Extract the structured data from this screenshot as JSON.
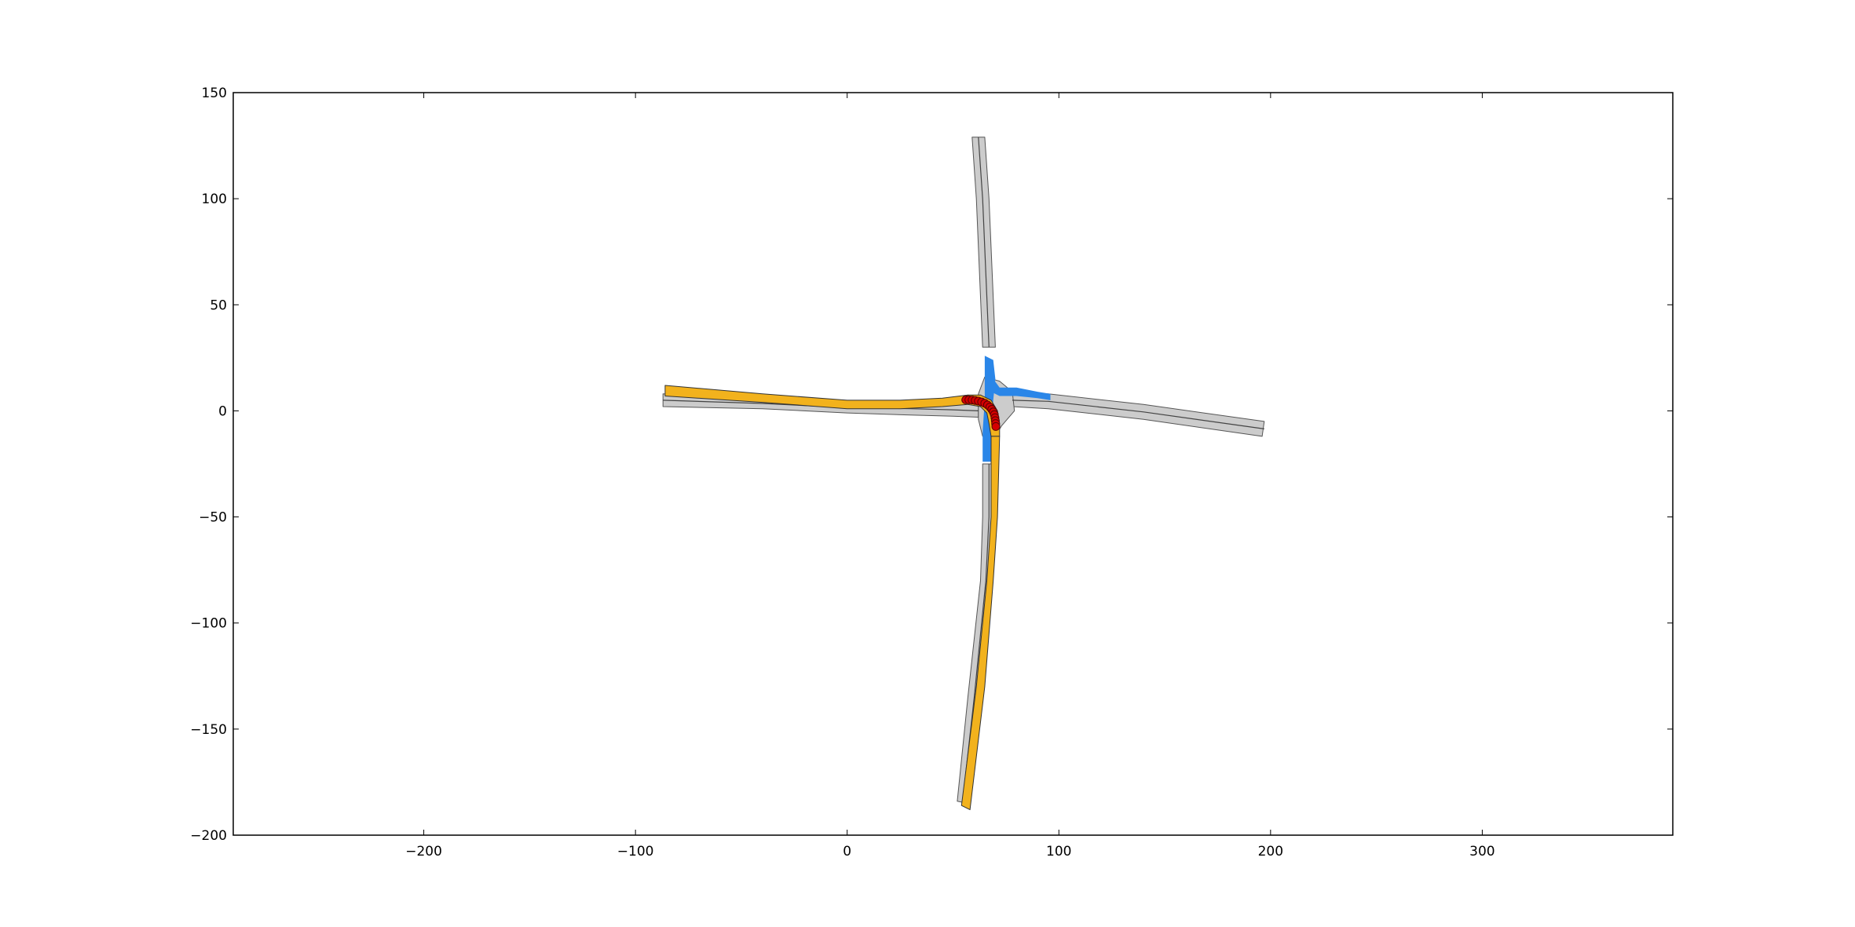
{
  "chart_data": {
    "type": "scatter",
    "title": "",
    "xlabel": "",
    "ylabel": "",
    "xlim": [
      -290,
      390
    ],
    "ylim": [
      -200,
      150
    ],
    "grid": false,
    "x_ticks": [
      -200,
      -100,
      0,
      100,
      200,
      300
    ],
    "x_tick_labels": [
      "−200",
      "−100",
      "0",
      "100",
      "200",
      "300"
    ],
    "y_ticks": [
      150,
      100,
      50,
      0,
      -50,
      -100,
      -150,
      -200
    ],
    "y_tick_labels": [
      "150",
      "100",
      "50",
      "0",
      "−50",
      "−100",
      "−150",
      "−200"
    ],
    "colors": {
      "road_fill": "#cccccc",
      "road_edge": "#555555",
      "lane_line": "#444444",
      "route_fill": "#f2b21d",
      "intersection_fill": "#2a86e8",
      "trajectory_fill": "#d40000",
      "trajectory_edge": "#5a0000"
    },
    "road_polygons": [
      {
        "name": "west-arm-lower",
        "points": [
          [
            -87,
            2
          ],
          [
            -40,
            1
          ],
          [
            0,
            -1
          ],
          [
            30,
            -2
          ],
          [
            50,
            -2.5
          ],
          [
            62,
            -3
          ],
          [
            62,
            3
          ],
          [
            50,
            3.5
          ],
          [
            30,
            4
          ],
          [
            0,
            4
          ],
          [
            -40,
            6
          ],
          [
            -87,
            8
          ]
        ]
      },
      {
        "name": "east-arm",
        "points": [
          [
            78,
            8
          ],
          [
            95,
            8
          ],
          [
            140,
            3
          ],
          [
            197,
            -5
          ],
          [
            196,
            -12
          ],
          [
            140,
            -4
          ],
          [
            95,
            1
          ],
          [
            78,
            2
          ]
        ]
      },
      {
        "name": "north-arm",
        "points": [
          [
            59,
            129
          ],
          [
            65,
            129
          ],
          [
            67,
            100
          ],
          [
            70,
            30
          ],
          [
            64,
            30
          ],
          [
            61,
            100
          ]
        ]
      },
      {
        "name": "south-arm",
        "points": [
          [
            64,
            -25
          ],
          [
            70,
            -25
          ],
          [
            70,
            -50
          ],
          [
            68,
            -80
          ],
          [
            63,
            -135
          ],
          [
            57,
            -185
          ],
          [
            52,
            -184
          ],
          [
            57,
            -135
          ],
          [
            63,
            -80
          ],
          [
            64,
            -50
          ]
        ]
      },
      {
        "name": "intersection-core",
        "points": [
          [
            62,
            8
          ],
          [
            65,
            16
          ],
          [
            72,
            14
          ],
          [
            78,
            9
          ],
          [
            79,
            0
          ],
          [
            73,
            -7
          ],
          [
            70,
            -12
          ],
          [
            64,
            -12
          ],
          [
            62,
            -4
          ]
        ]
      }
    ],
    "route_polygons": [
      {
        "name": "route-west",
        "points": [
          [
            -86,
            12
          ],
          [
            -40,
            8
          ],
          [
            0,
            5
          ],
          [
            25,
            5
          ],
          [
            45,
            6
          ],
          [
            57,
            7.5
          ],
          [
            57,
            3
          ],
          [
            45,
            2
          ],
          [
            25,
            1
          ],
          [
            0,
            1
          ],
          [
            -40,
            4
          ],
          [
            -86,
            7
          ]
        ]
      },
      {
        "name": "route-turn",
        "points": [
          [
            57,
            7.5
          ],
          [
            63,
            7.5
          ],
          [
            68,
            5
          ],
          [
            71,
            0
          ],
          [
            72,
            -6
          ],
          [
            72,
            -12
          ],
          [
            68,
            -12
          ],
          [
            67,
            -6
          ],
          [
            66,
            -1
          ],
          [
            63,
            2
          ],
          [
            57,
            3
          ]
        ]
      },
      {
        "name": "route-south",
        "points": [
          [
            68,
            -12
          ],
          [
            72,
            -12
          ],
          [
            71,
            -50
          ],
          [
            69,
            -80
          ],
          [
            65,
            -130
          ],
          [
            58,
            -188
          ],
          [
            54,
            -186
          ],
          [
            61,
            -130
          ],
          [
            66,
            -80
          ],
          [
            68,
            -50
          ]
        ]
      }
    ],
    "intersection_polygons": [
      {
        "name": "blue-north-south",
        "points": [
          [
            65,
            26
          ],
          [
            69,
            24
          ],
          [
            70,
            15
          ],
          [
            69,
            5
          ],
          [
            68,
            -10
          ],
          [
            68,
            -24
          ],
          [
            64,
            -24
          ],
          [
            64,
            -10
          ],
          [
            65,
            5
          ],
          [
            65,
            15
          ]
        ]
      },
      {
        "name": "blue-east",
        "points": [
          [
            69,
            15
          ],
          [
            72,
            11
          ],
          [
            80,
            11
          ],
          [
            90,
            9
          ],
          [
            96,
            8
          ],
          [
            96,
            5
          ],
          [
            90,
            6
          ],
          [
            80,
            7
          ],
          [
            72,
            7
          ],
          [
            68,
            9
          ]
        ]
      }
    ],
    "centerlines": [
      {
        "name": "west-centerline",
        "points": [
          [
            -87,
            5
          ],
          [
            -40,
            3.5
          ],
          [
            0,
            1.5
          ],
          [
            30,
            1
          ],
          [
            50,
            0.5
          ],
          [
            62,
            0
          ]
        ]
      },
      {
        "name": "east-centerline",
        "points": [
          [
            78,
            5
          ],
          [
            95,
            4.5
          ],
          [
            140,
            -0.5
          ],
          [
            197,
            -8.5
          ]
        ]
      },
      {
        "name": "north-centerline",
        "points": [
          [
            62,
            129
          ],
          [
            64,
            100
          ],
          [
            67,
            30
          ]
        ]
      },
      {
        "name": "south-centerline",
        "points": [
          [
            67,
            -25
          ],
          [
            67,
            -50
          ],
          [
            65.5,
            -80
          ],
          [
            60,
            -135
          ],
          [
            54.5,
            -184.5
          ]
        ]
      }
    ],
    "trajectory": {
      "name": "trajectory-points",
      "x": [
        56,
        57.5,
        59,
        60.5,
        62,
        63.5,
        65,
        66.3,
        67.4,
        68.3,
        69,
        69.5,
        69.8,
        70,
        70.1,
        70.2
      ],
      "y": [
        5.2,
        5.2,
        5.1,
        4.9,
        4.6,
        4.2,
        3.6,
        2.8,
        1.8,
        0.7,
        -0.5,
        -1.8,
        -3.2,
        -4.6,
        -6,
        -7.4
      ]
    }
  }
}
